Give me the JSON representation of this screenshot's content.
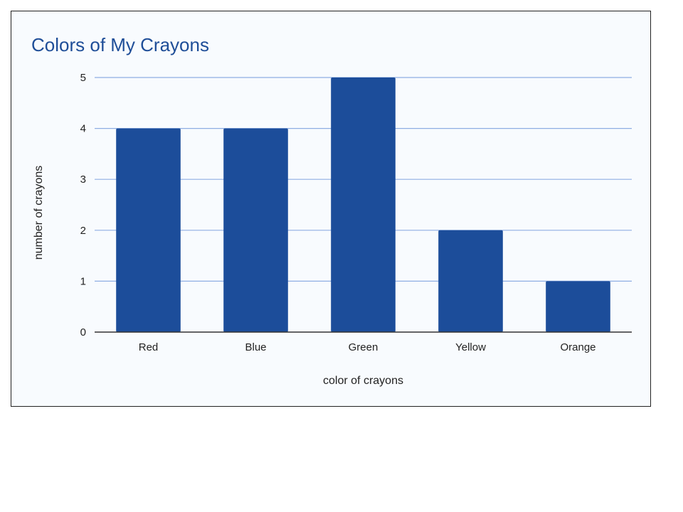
{
  "chart_data": {
    "type": "bar",
    "title": "Colors of My Crayons",
    "xlabel": "color of crayons",
    "ylabel": "number of crayons",
    "categories": [
      "Red",
      "Blue",
      "Green",
      "Yellow",
      "Orange"
    ],
    "values": [
      4,
      4,
      5,
      2,
      1
    ],
    "ylim": [
      0,
      5
    ],
    "yticks": [
      0,
      1,
      2,
      3,
      4,
      5
    ],
    "grid": true,
    "legend": "none",
    "colors": {
      "bar": "#1c4d9a",
      "grid": "#8faee3",
      "axis": "#333333",
      "title": "#1f4e98",
      "background": "#f8fbfe"
    }
  }
}
